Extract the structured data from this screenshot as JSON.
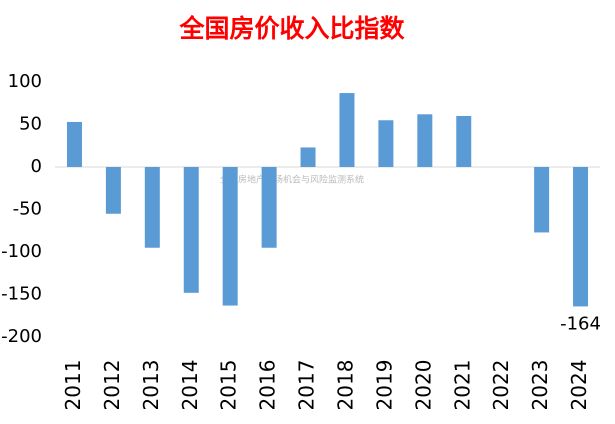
{
  "chart_data": {
    "type": "bar",
    "title": "全国房价收入比指数",
    "watermark": "全国房地产市场机会与风险监测系统",
    "categories": [
      "2011",
      "2012",
      "2013",
      "2014",
      "2015",
      "2016",
      "2017",
      "2018",
      "2019",
      "2020",
      "2021",
      "2022",
      "2023",
      "2024"
    ],
    "values": [
      53,
      -55,
      -95,
      -148,
      -163,
      -95,
      23,
      87,
      55,
      62,
      60,
      null,
      -77,
      -164
    ],
    "value_labels": [
      null,
      null,
      null,
      null,
      null,
      null,
      null,
      null,
      null,
      null,
      null,
      null,
      null,
      "-164"
    ],
    "color": "#5b9bd5",
    "ylim": [
      -200,
      100
    ],
    "yticks": [
      100,
      50,
      0,
      -50,
      -100,
      -150,
      -200
    ],
    "grid": false
  }
}
